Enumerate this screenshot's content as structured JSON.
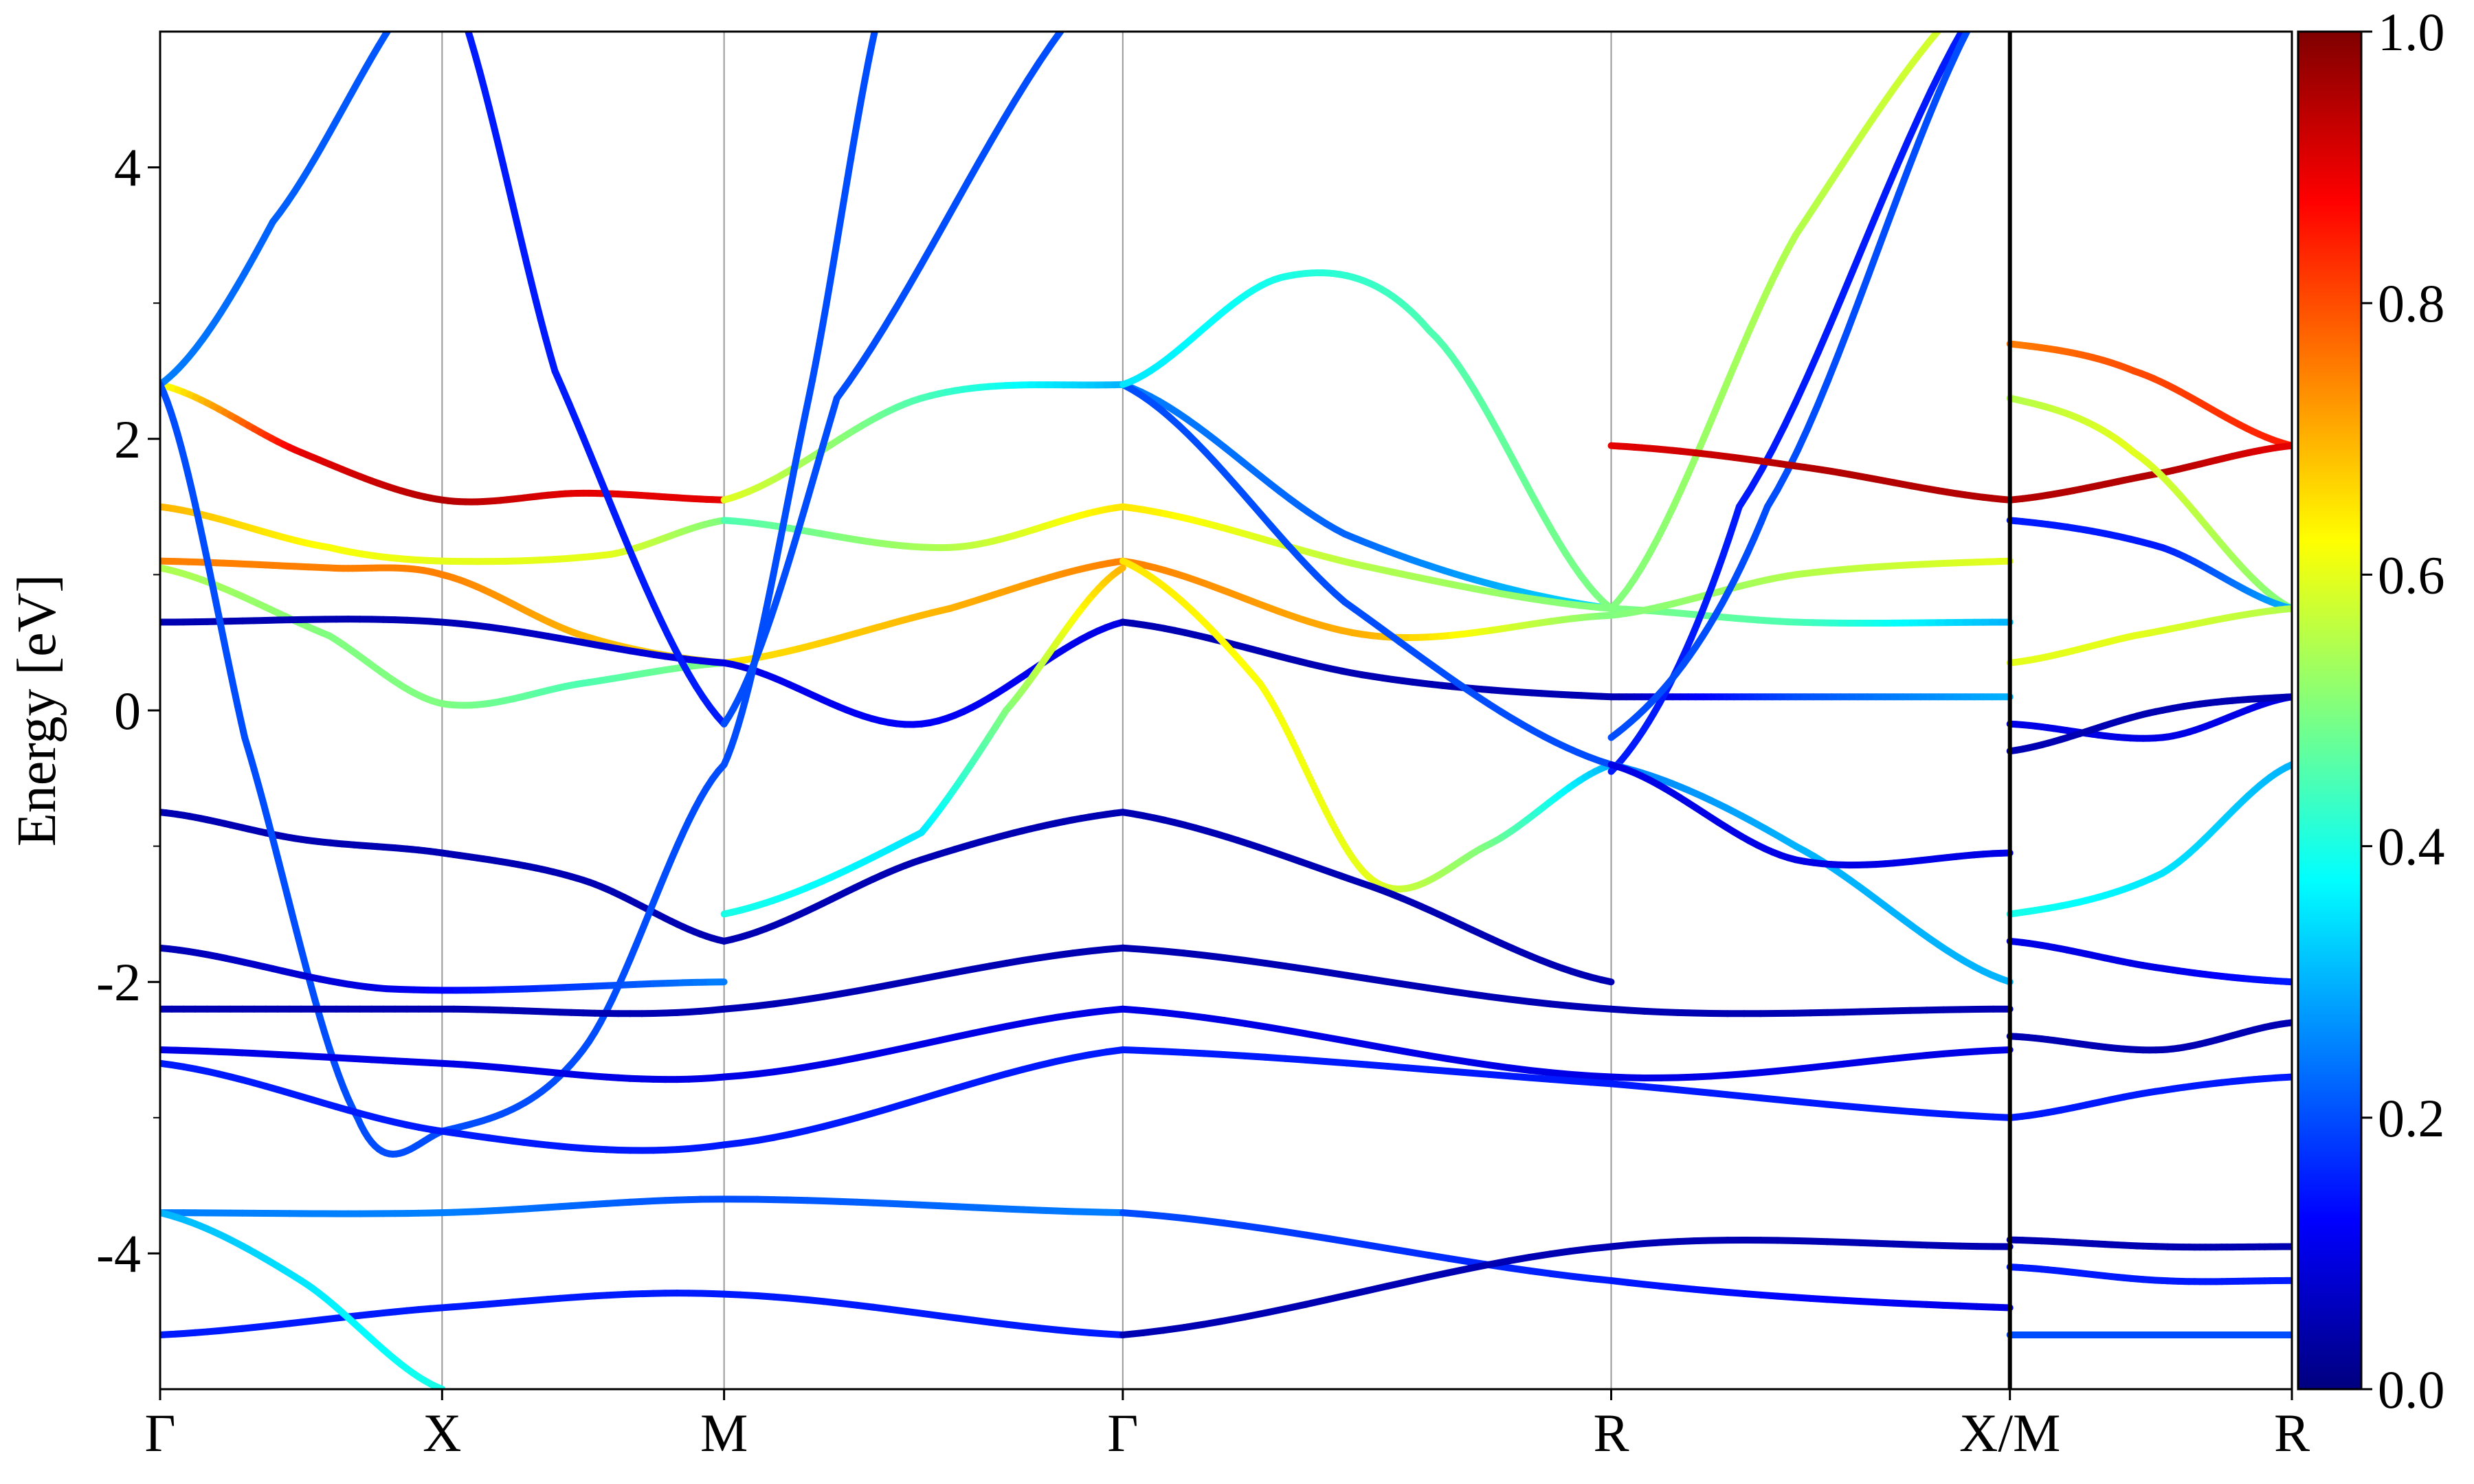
{
  "chart_data": {
    "type": "line",
    "title": "",
    "xlabel": "",
    "ylabel": "Energy [eV]",
    "ylim": [
      -5,
      5
    ],
    "y_ticks": [
      -4,
      -2,
      0,
      2,
      4
    ],
    "y_tick_labels": [
      "-4",
      "-2",
      "0",
      "2",
      "4"
    ],
    "k_path": [
      {
        "label": "Γ",
        "pos": 0.0
      },
      {
        "label": "X",
        "pos": 1.0
      },
      {
        "label": "M",
        "pos": 2.0
      },
      {
        "label": "Γ",
        "pos": 3.414
      },
      {
        "label": "R",
        "pos": 5.146
      },
      {
        "label": "X/M",
        "pos": 6.56
      },
      {
        "label": "R",
        "pos": 7.56
      }
    ],
    "path_break_at": 6.56,
    "colorbar": {
      "colormap": "jet",
      "range": [
        0.0,
        1.0
      ],
      "tick_labels": [
        "0.0",
        "0.2",
        "0.4",
        "0.6",
        "0.8",
        "1.0"
      ]
    },
    "series": [
      {
        "x": [
          0,
          0.5,
          1,
          1.5,
          2
        ],
        "y": [
          2.4,
          1.9,
          1.55,
          1.6,
          1.55
        ],
        "c": [
          0.6,
          0.9,
          0.95,
          0.9,
          0.9
        ]
      },
      {
        "x": [
          2,
          2.7,
          3.414
        ],
        "y": [
          1.55,
          2.3,
          2.4
        ],
        "c": [
          0.6,
          0.45,
          0.3
        ]
      },
      {
        "x": [
          3.414,
          4.2,
          5.146
        ],
        "y": [
          2.4,
          1.3,
          0.75
        ],
        "c": [
          0.25,
          0.22,
          0.35
        ]
      },
      {
        "x": [
          5.146,
          5.8,
          6.56
        ],
        "y": [
          0.75,
          0.65,
          0.65
        ],
        "c": [
          0.5,
          0.45,
          0.3
        ]
      },
      {
        "x": [
          0,
          0.6,
          1,
          1.6,
          2
        ],
        "y": [
          1.5,
          1.2,
          1.1,
          1.15,
          1.4
        ],
        "c": [
          0.7,
          0.62,
          0.6,
          0.6,
          0.5
        ]
      },
      {
        "x": [
          2,
          2.8,
          3.414
        ],
        "y": [
          1.4,
          1.2,
          1.5
        ],
        "c": [
          0.45,
          0.55,
          0.65
        ]
      },
      {
        "x": [
          3.414,
          4.3,
          5.146
        ],
        "y": [
          1.5,
          1.05,
          0.75
        ],
        "c": [
          0.65,
          0.55,
          0.5
        ]
      },
      {
        "x": [
          0,
          0.6,
          1,
          1.5,
          2
        ],
        "y": [
          1.1,
          1.05,
          1.0,
          0.55,
          0.35
        ],
        "c": [
          0.75,
          0.75,
          0.75,
          0.7,
          0.65
        ]
      },
      {
        "x": [
          2,
          2.8,
          3.414
        ],
        "y": [
          0.35,
          0.75,
          1.1
        ],
        "c": [
          0.65,
          0.7,
          0.75
        ]
      },
      {
        "x": [
          3.414,
          4.3,
          5.146
        ],
        "y": [
          1.1,
          0.55,
          0.7
        ],
        "c": [
          0.75,
          0.7,
          0.5
        ]
      },
      {
        "x": [
          5.146,
          5.8,
          6.56
        ],
        "y": [
          0.7,
          1.0,
          1.1
        ],
        "c": [
          0.5,
          0.55,
          0.6
        ]
      },
      {
        "x": [
          0,
          0.6,
          1,
          1.5,
          2
        ],
        "y": [
          1.05,
          0.55,
          0.05,
          0.2,
          0.35
        ],
        "c": [
          0.55,
          0.5,
          0.5,
          0.45,
          0.5
        ]
      },
      {
        "x": [
          0,
          1,
          2
        ],
        "y": [
          0.65,
          0.65,
          0.35
        ],
        "c": [
          0.05,
          0.05,
          0.1
        ]
      },
      {
        "x": [
          2,
          2.7,
          3.414
        ],
        "y": [
          0.35,
          -0.1,
          0.65
        ],
        "c": [
          0.1,
          0.12,
          0.1
        ]
      },
      {
        "x": [
          3.414,
          4.3,
          5.146
        ],
        "y": [
          0.65,
          0.25,
          0.1
        ],
        "c": [
          0.05,
          0.05,
          0.05
        ]
      },
      {
        "x": [
          5.146,
          5.8,
          6.56
        ],
        "y": [
          0.1,
          0.1,
          0.1
        ],
        "c": [
          0.05,
          0.2,
          0.3
        ]
      },
      {
        "x": [
          3.414,
          3.9,
          4.3,
          4.7,
          5.146
        ],
        "y": [
          1.1,
          0.2,
          -1.25,
          -1.0,
          -0.4
        ],
        "c": [
          0.65,
          0.62,
          0.6,
          0.5,
          0.3
        ]
      },
      {
        "x": [
          2,
          2.7,
          3.0,
          3.414
        ],
        "y": [
          -1.5,
          -0.9,
          0.0,
          1.05
        ],
        "c": [
          0.4,
          0.35,
          0.5,
          0.7
        ]
      },
      {
        "x": [
          0,
          0.5,
          1,
          1.5,
          2
        ],
        "y": [
          -0.75,
          -0.95,
          -1.05,
          -1.25,
          -1.7
        ],
        "c": [
          0.05,
          0.05,
          0.05,
          0.05,
          0.05
        ]
      },
      {
        "x": [
          2,
          2.7,
          3.414
        ],
        "y": [
          -1.7,
          -1.1,
          -0.75
        ],
        "c": [
          0.05,
          0.05,
          0.05
        ]
      },
      {
        "x": [
          3.414,
          4.3,
          5.146
        ],
        "y": [
          -0.75,
          -1.3,
          -2.0
        ],
        "c": [
          0.05,
          0.05,
          0.05
        ]
      },
      {
        "x": [
          0,
          0.4,
          1,
          1.6,
          2
        ],
        "y": [
          2.4,
          3.6,
          5.5,
          5.5,
          5.5
        ],
        "c": [
          0.25,
          0.22,
          0.2,
          0.2,
          0.2
        ]
      },
      {
        "x": [
          0,
          0.3,
          0.7,
          1,
          1.5,
          2
        ],
        "y": [
          2.4,
          -0.2,
          -3.0,
          -3.1,
          -2.5,
          -0.4
        ],
        "c": [
          0.2,
          0.2,
          0.2,
          0.2,
          0.2,
          0.2
        ]
      },
      {
        "x": [
          1,
          1.4,
          2
        ],
        "y": [
          5.5,
          2.5,
          -0.1
        ],
        "c": [
          0.15,
          0.15,
          0.15
        ]
      },
      {
        "x": [
          2,
          2.4,
          3.414
        ],
        "y": [
          -0.1,
          2.3,
          5.5
        ],
        "c": [
          0.2,
          0.2,
          0.2
        ]
      },
      {
        "x": [
          2,
          2.3,
          2.6
        ],
        "y": [
          -0.4,
          2.3,
          5.5
        ],
        "c": [
          0.2,
          0.2,
          0.2
        ]
      },
      {
        "x": [
          3.414,
          4.2,
          5.146
        ],
        "y": [
          2.4,
          0.8,
          -0.4
        ],
        "c": [
          0.2,
          0.2,
          0.2
        ]
      },
      {
        "x": [
          3.414,
          4.0,
          4.5,
          5.146
        ],
        "y": [
          2.4,
          3.2,
          2.8,
          0.75
        ],
        "c": [
          0.35,
          0.4,
          0.45,
          0.5
        ]
      },
      {
        "x": [
          5.146,
          5.8,
          6.56
        ],
        "y": [
          0.75,
          3.5,
          5.5
        ],
        "c": [
          0.5,
          0.55,
          0.6
        ]
      },
      {
        "x": [
          5.146,
          5.6,
          6.56
        ],
        "y": [
          -0.45,
          1.5,
          5.5
        ],
        "c": [
          0.15,
          0.15,
          0.15
        ]
      },
      {
        "x": [
          5.146,
          5.7,
          6.56
        ],
        "y": [
          -0.2,
          1.5,
          5.5
        ],
        "c": [
          0.2,
          0.2,
          0.2
        ]
      },
      {
        "x": [
          5.146,
          5.8,
          6.56
        ],
        "y": [
          1.95,
          1.8,
          1.55
        ],
        "c": [
          0.9,
          0.95,
          0.95
        ]
      },
      {
        "x": [
          5.146,
          5.8,
          6.56
        ],
        "y": [
          -0.4,
          -1.0,
          -2.0
        ],
        "c": [
          0.25,
          0.3,
          0.3
        ]
      },
      {
        "x": [
          5.146,
          5.8,
          6.56
        ],
        "y": [
          -0.4,
          -1.1,
          -1.05
        ],
        "c": [
          0.1,
          0.1,
          0.1
        ]
      },
      {
        "x": [
          0,
          0.8,
          2
        ],
        "y": [
          -1.75,
          -2.05,
          -2.0
        ],
        "c": [
          0.05,
          0.1,
          0.25
        ]
      },
      {
        "x": [
          0,
          1,
          2,
          3.414
        ],
        "y": [
          -2.2,
          -2.2,
          -2.2,
          -1.75
        ],
        "c": [
          0.05,
          0.05,
          0.05,
          0.05
        ]
      },
      {
        "x": [
          3.414,
          5.146,
          6.56
        ],
        "y": [
          -1.75,
          -2.2,
          -2.2
        ],
        "c": [
          0.05,
          0.05,
          0.05
        ]
      },
      {
        "x": [
          0,
          1,
          2,
          3.414
        ],
        "y": [
          -2.5,
          -2.6,
          -2.7,
          -2.2
        ],
        "c": [
          0.1,
          0.1,
          0.1,
          0.1
        ]
      },
      {
        "x": [
          3.414,
          5.146,
          6.56
        ],
        "y": [
          -2.2,
          -2.7,
          -2.5
        ],
        "c": [
          0.1,
          0.1,
          0.1
        ]
      },
      {
        "x": [
          0,
          1,
          2,
          3.414
        ],
        "y": [
          -2.6,
          -3.1,
          -3.2,
          -2.5
        ],
        "c": [
          0.15,
          0.15,
          0.15,
          0.15
        ]
      },
      {
        "x": [
          3.414,
          5.146,
          6.56
        ],
        "y": [
          -2.5,
          -2.75,
          -3.0
        ],
        "c": [
          0.15,
          0.15,
          0.15
        ]
      },
      {
        "x": [
          0,
          1,
          2,
          3.414
        ],
        "y": [
          -3.7,
          -3.7,
          -3.6,
          -3.7
        ],
        "c": [
          0.25,
          0.25,
          0.2,
          0.25
        ]
      },
      {
        "x": [
          3.414,
          5.146,
          6.56
        ],
        "y": [
          -3.7,
          -4.2,
          -4.4
        ],
        "c": [
          0.2,
          0.15,
          0.1
        ]
      },
      {
        "x": [
          0,
          1,
          2,
          3.414
        ],
        "y": [
          -4.6,
          -4.4,
          -4.3,
          -4.6
        ],
        "c": [
          0.15,
          0.15,
          0.15,
          0.15
        ]
      },
      {
        "x": [
          3.414,
          5.146,
          6.56
        ],
        "y": [
          -4.6,
          -3.95,
          -3.95
        ],
        "c": [
          0.05,
          0.05,
          0.05
        ]
      },
      {
        "x": [
          0,
          0.5,
          1.0
        ],
        "y": [
          -3.7,
          -4.2,
          -5.0
        ],
        "c": [
          0.3,
          0.35,
          0.4
        ]
      },
      {
        "x": [
          6.56,
          7.0,
          7.56
        ],
        "y": [
          2.7,
          2.5,
          1.95
        ],
        "c": [
          0.75,
          0.8,
          0.85
        ]
      },
      {
        "x": [
          6.56,
          7.1,
          7.56
        ],
        "y": [
          1.55,
          1.75,
          1.95
        ],
        "c": [
          0.95,
          0.95,
          0.9
        ]
      },
      {
        "x": [
          6.56,
          7.0,
          7.56
        ],
        "y": [
          2.3,
          1.9,
          0.75
        ],
        "c": [
          0.55,
          0.6,
          0.5
        ]
      },
      {
        "x": [
          6.56,
          7.1,
          7.56
        ],
        "y": [
          1.4,
          1.2,
          0.75
        ],
        "c": [
          0.15,
          0.15,
          0.3
        ]
      },
      {
        "x": [
          6.56,
          7.0,
          7.56
        ],
        "y": [
          0.35,
          0.55,
          0.75
        ],
        "c": [
          0.6,
          0.6,
          0.55
        ]
      },
      {
        "x": [
          6.56,
          7.1,
          7.56
        ],
        "y": [
          -0.1,
          -0.2,
          0.1
        ],
        "c": [
          0.1,
          0.1,
          0.1
        ]
      },
      {
        "x": [
          6.56,
          7.1,
          7.56
        ],
        "y": [
          -1.5,
          -1.2,
          -0.4
        ],
        "c": [
          0.4,
          0.35,
          0.3
        ]
      },
      {
        "x": [
          6.56,
          7.1,
          7.56
        ],
        "y": [
          -0.3,
          0.0,
          0.1
        ],
        "c": [
          0.05,
          0.05,
          0.05
        ]
      },
      {
        "x": [
          6.56,
          7.1,
          7.56
        ],
        "y": [
          -1.7,
          -1.9,
          -2.0
        ],
        "c": [
          0.1,
          0.1,
          0.15
        ]
      },
      {
        "x": [
          6.56,
          7.1,
          7.56
        ],
        "y": [
          -2.4,
          -2.5,
          -2.3
        ],
        "c": [
          0.05,
          0.05,
          0.05
        ]
      },
      {
        "x": [
          6.56,
          7.1,
          7.56
        ],
        "y": [
          -3.0,
          -2.8,
          -2.7
        ],
        "c": [
          0.15,
          0.15,
          0.15
        ]
      },
      {
        "x": [
          6.56,
          7.1,
          7.56
        ],
        "y": [
          -3.9,
          -3.95,
          -3.95
        ],
        "c": [
          0.05,
          0.05,
          0.05
        ]
      },
      {
        "x": [
          6.56,
          7.1,
          7.56
        ],
        "y": [
          -4.1,
          -4.2,
          -4.2
        ],
        "c": [
          0.15,
          0.15,
          0.15
        ]
      },
      {
        "x": [
          6.56,
          7.1,
          7.56
        ],
        "y": [
          -4.6,
          -4.6,
          -4.6
        ],
        "c": [
          0.2,
          0.2,
          0.2
        ]
      }
    ]
  }
}
